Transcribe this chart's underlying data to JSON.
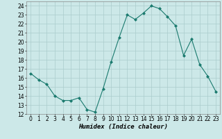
{
  "x": [
    0,
    1,
    2,
    3,
    4,
    5,
    6,
    7,
    8,
    9,
    10,
    11,
    12,
    13,
    14,
    15,
    16,
    17,
    18,
    19,
    20,
    21,
    22,
    23
  ],
  "y": [
    16.5,
    15.8,
    15.3,
    14.0,
    13.5,
    13.5,
    13.8,
    12.5,
    12.2,
    14.8,
    17.8,
    20.5,
    23.0,
    22.5,
    23.2,
    24.0,
    23.7,
    22.8,
    21.8,
    18.5,
    20.3,
    17.5,
    16.2,
    14.5
  ],
  "line_color": "#1a7a6e",
  "marker": "D",
  "marker_size": 2,
  "bg_color": "#cce8e8",
  "grid_color": "#aacccc",
  "xlabel": "Humidex (Indice chaleur)",
  "ylabel": "",
  "ylim": [
    12,
    24.5
  ],
  "yticks": [
    12,
    13,
    14,
    15,
    16,
    17,
    18,
    19,
    20,
    21,
    22,
    23,
    24
  ],
  "xticks": [
    0,
    1,
    2,
    3,
    4,
    5,
    6,
    7,
    8,
    9,
    10,
    11,
    12,
    13,
    14,
    15,
    16,
    17,
    18,
    19,
    20,
    21,
    22,
    23
  ],
  "xlim": [
    -0.5,
    23.5
  ],
  "tick_fontsize": 5.5,
  "label_fontsize": 6.5
}
